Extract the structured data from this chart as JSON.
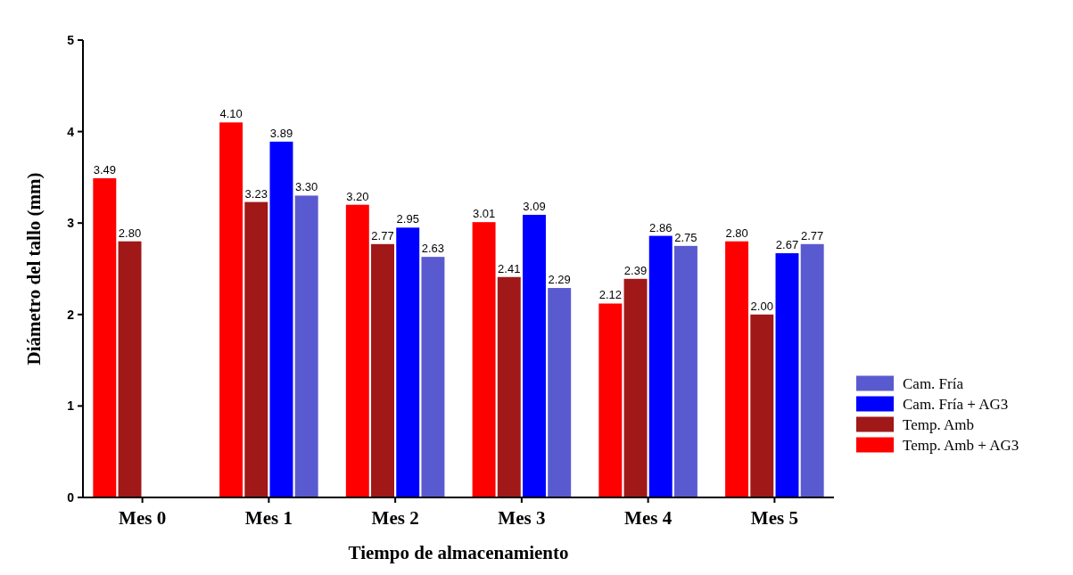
{
  "chart_data": {
    "type": "bar",
    "xlabel": "Tiempo de almacenamiento",
    "ylabel": "Diámetro del tallo (mm)",
    "categories": [
      "Mes 0",
      "Mes 1",
      "Mes 2",
      "Mes 3",
      "Mes 4",
      "Mes 5"
    ],
    "series": [
      {
        "name": "Temp. Amb + AG3",
        "color": "#ff0000",
        "values": [
          3.49,
          4.1,
          3.2,
          3.01,
          2.12,
          2.8
        ],
        "value_labels": [
          "3.49",
          "4.10",
          "3.20",
          "3.01",
          "2.12",
          "2.80"
        ]
      },
      {
        "name": "Temp. Amb",
        "color": "#a01818",
        "values": [
          2.8,
          3.23,
          2.77,
          2.41,
          2.39,
          2.0
        ],
        "value_labels": [
          "2.80",
          "3.23",
          "2.77",
          "2.41",
          "2.39",
          "2.00"
        ]
      },
      {
        "name": "Cam. Fría + AG3",
        "color": "#0000ff",
        "values": [
          null,
          3.89,
          2.95,
          3.09,
          2.86,
          2.67
        ],
        "value_labels": [
          null,
          "3.89",
          "2.95",
          "3.09",
          "2.86",
          "2.67"
        ]
      },
      {
        "name": "Cam. Fría",
        "color": "#5a5ad0",
        "values": [
          null,
          3.3,
          2.63,
          2.29,
          2.75,
          2.77
        ],
        "value_labels": [
          null,
          "3.30",
          "2.63",
          "2.29",
          "2.75",
          "2.77"
        ]
      }
    ],
    "ylim": [
      0,
      5
    ],
    "yticks": [
      0,
      1,
      2,
      3,
      4,
      5
    ],
    "legend": "right",
    "grid": false
  }
}
